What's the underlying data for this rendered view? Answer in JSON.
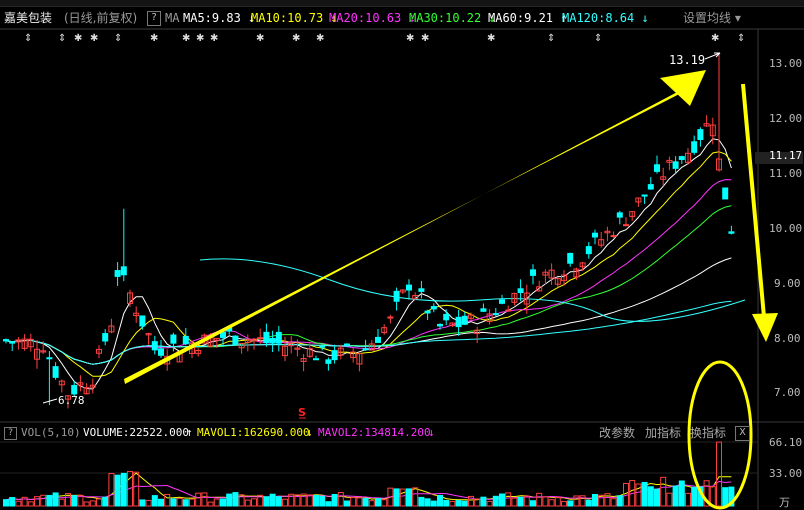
{
  "header": {
    "stock_name": "嘉美包装",
    "period": "(日线,前复权)",
    "help": "?",
    "settings_label": "设置均线",
    "ma": [
      {
        "label": "MA",
        "value": "",
        "arrow": "",
        "color": "#9a9a9a"
      },
      {
        "label": "MA5:",
        "value": "9.83",
        "arrow": "↓",
        "color": "#ffffff"
      },
      {
        "label": "MA10:",
        "value": "10.73",
        "arrow": "↓",
        "color": "#ffff00"
      },
      {
        "label": "MA20:",
        "value": "10.63",
        "arrow": "↓",
        "color": "#ff33ff"
      },
      {
        "label": "MA30:",
        "value": "10.22",
        "arrow": "↓",
        "color": "#33ff33"
      },
      {
        "label": "MA60:",
        "value": "9.21",
        "arrow": "↑",
        "color": "#ffffff"
      },
      {
        "label": "MA120:",
        "value": "8.64",
        "arrow": "↓",
        "color": "#33ffff"
      }
    ]
  },
  "price_axis": {
    "labels": [
      "13.00",
      "12.00",
      "11.17",
      "11.00",
      "10.00",
      "9.00",
      "8.00",
      "7.00"
    ],
    "current_price": "11.17"
  },
  "annotations": {
    "high_label": "13.19",
    "low_label": "6.78",
    "signal_mark": "S"
  },
  "volume": {
    "help": "?",
    "title": "VOL(5,10)",
    "volume_label": "VOLUME:22522.000",
    "mavol1_label": "MAVOL1:162690.000",
    "mavol1_arrow": "↑",
    "mavol2_label": "MAVOL2:134814.200",
    "mavol2_arrow": "↓",
    "buttons": [
      "改参数",
      "加指标",
      "换指标"
    ],
    "close": "X",
    "axis_labels": [
      "66.10",
      "33.00",
      "万"
    ]
  },
  "colors": {
    "up": "#ff4040",
    "down": "#00ffff",
    "arrow": "#ffff00",
    "ma5": "#ffffff",
    "ma10": "#ffff00",
    "ma20": "#ff33ff",
    "ma30": "#33ff33",
    "ma60": "#ffffff",
    "ma120": "#33ffff"
  }
}
